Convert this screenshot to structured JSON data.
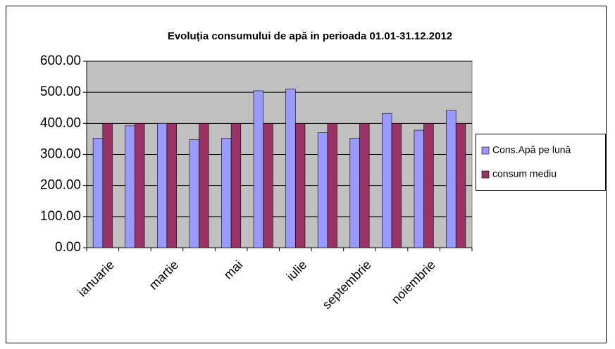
{
  "chart_data": {
    "type": "bar",
    "title": "Evoluția consumului de apă  in perioada 01.01-31.12.2012",
    "categories": [
      "ianuarie",
      null,
      "martie",
      null,
      "mai",
      null,
      "iulie",
      null,
      "septembrie",
      null,
      "noiembrie",
      null
    ],
    "series": [
      {
        "name": "Cons.Apă pe lună",
        "color": "#9999ff",
        "values": [
          352,
          392,
          400,
          348,
          352,
          505,
          510,
          370,
          352,
          432,
          378,
          442
        ]
      },
      {
        "name": "consum mediu",
        "color": "#993366",
        "values": [
          400,
          400,
          400,
          400,
          400,
          400,
          400,
          400,
          400,
          400,
          400,
          400
        ]
      }
    ],
    "ylim": [
      0,
      600
    ],
    "yticks": [
      {
        "value": 0,
        "label": "0.00"
      },
      {
        "value": 100,
        "label": "100.00"
      },
      {
        "value": 200,
        "label": "200.00"
      },
      {
        "value": 300,
        "label": "300.00"
      },
      {
        "value": 400,
        "label": "400.00"
      },
      {
        "value": 500,
        "label": "500.00"
      },
      {
        "value": 600,
        "label": "600.00"
      }
    ],
    "grid": true,
    "legend": "right",
    "plot_background": "#c0c0c0"
  }
}
